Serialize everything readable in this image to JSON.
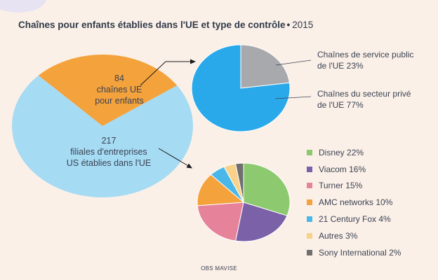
{
  "title": {
    "main": "Chaînes pour enfants établies dans l'UE et type de contrôle",
    "bullet": "•",
    "year": "2015"
  },
  "source": "OBS MAVISE",
  "colors": {
    "ue": "#f4a23c",
    "us": "#a6dbf4",
    "public": "#a7a9ac",
    "prive": "#2aa9ea",
    "disney": "#8dc96f",
    "viacom": "#7b61a8",
    "turner": "#e6829a",
    "amc": "#f4a23c",
    "fox": "#49b8e8",
    "autres": "#f8d28b",
    "sony": "#6f6f70",
    "background": "#fbf0e8",
    "text": "#3a4252"
  },
  "chart_data": [
    {
      "type": "pie",
      "id": "total",
      "slices": [
        {
          "key": "ue",
          "value": 84,
          "count": "84",
          "label_lines": [
            "chaînes UE",
            "pour enfants"
          ]
        },
        {
          "key": "us",
          "value": 217,
          "count": "217",
          "label_lines": [
            "filiales d'entreprises",
            "US établies dans l'UE"
          ]
        }
      ]
    },
    {
      "type": "pie",
      "id": "controle_ue",
      "slices": [
        {
          "key": "public",
          "value": 23,
          "label_lines": [
            "Chaînes de service public",
            "de l'UE  23%"
          ]
        },
        {
          "key": "prive",
          "value": 77,
          "label_lines": [
            "Chaînes du secteur privé",
            "de l'UE  77%"
          ]
        }
      ]
    },
    {
      "type": "pie",
      "id": "filiales_us",
      "slices": [
        {
          "key": "disney",
          "name": "Disney",
          "value": 22,
          "label": "Disney  22%"
        },
        {
          "key": "viacom",
          "name": "Viacom",
          "value": 16,
          "label": "Viacom  16%"
        },
        {
          "key": "turner",
          "name": "Turner",
          "value": 15,
          "label": "Turner  15%"
        },
        {
          "key": "amc",
          "name": "AMC networks",
          "value": 10,
          "label": "AMC networks  10%"
        },
        {
          "key": "fox",
          "name": "21 Century Fox",
          "value": 4,
          "label": "21 Century Fox  4%"
        },
        {
          "key": "autres",
          "name": "Autres",
          "value": 3,
          "label": "Autres  3%"
        },
        {
          "key": "sony",
          "name": "Sony International",
          "value": 2,
          "label": "Sony International  2%"
        }
      ]
    }
  ]
}
